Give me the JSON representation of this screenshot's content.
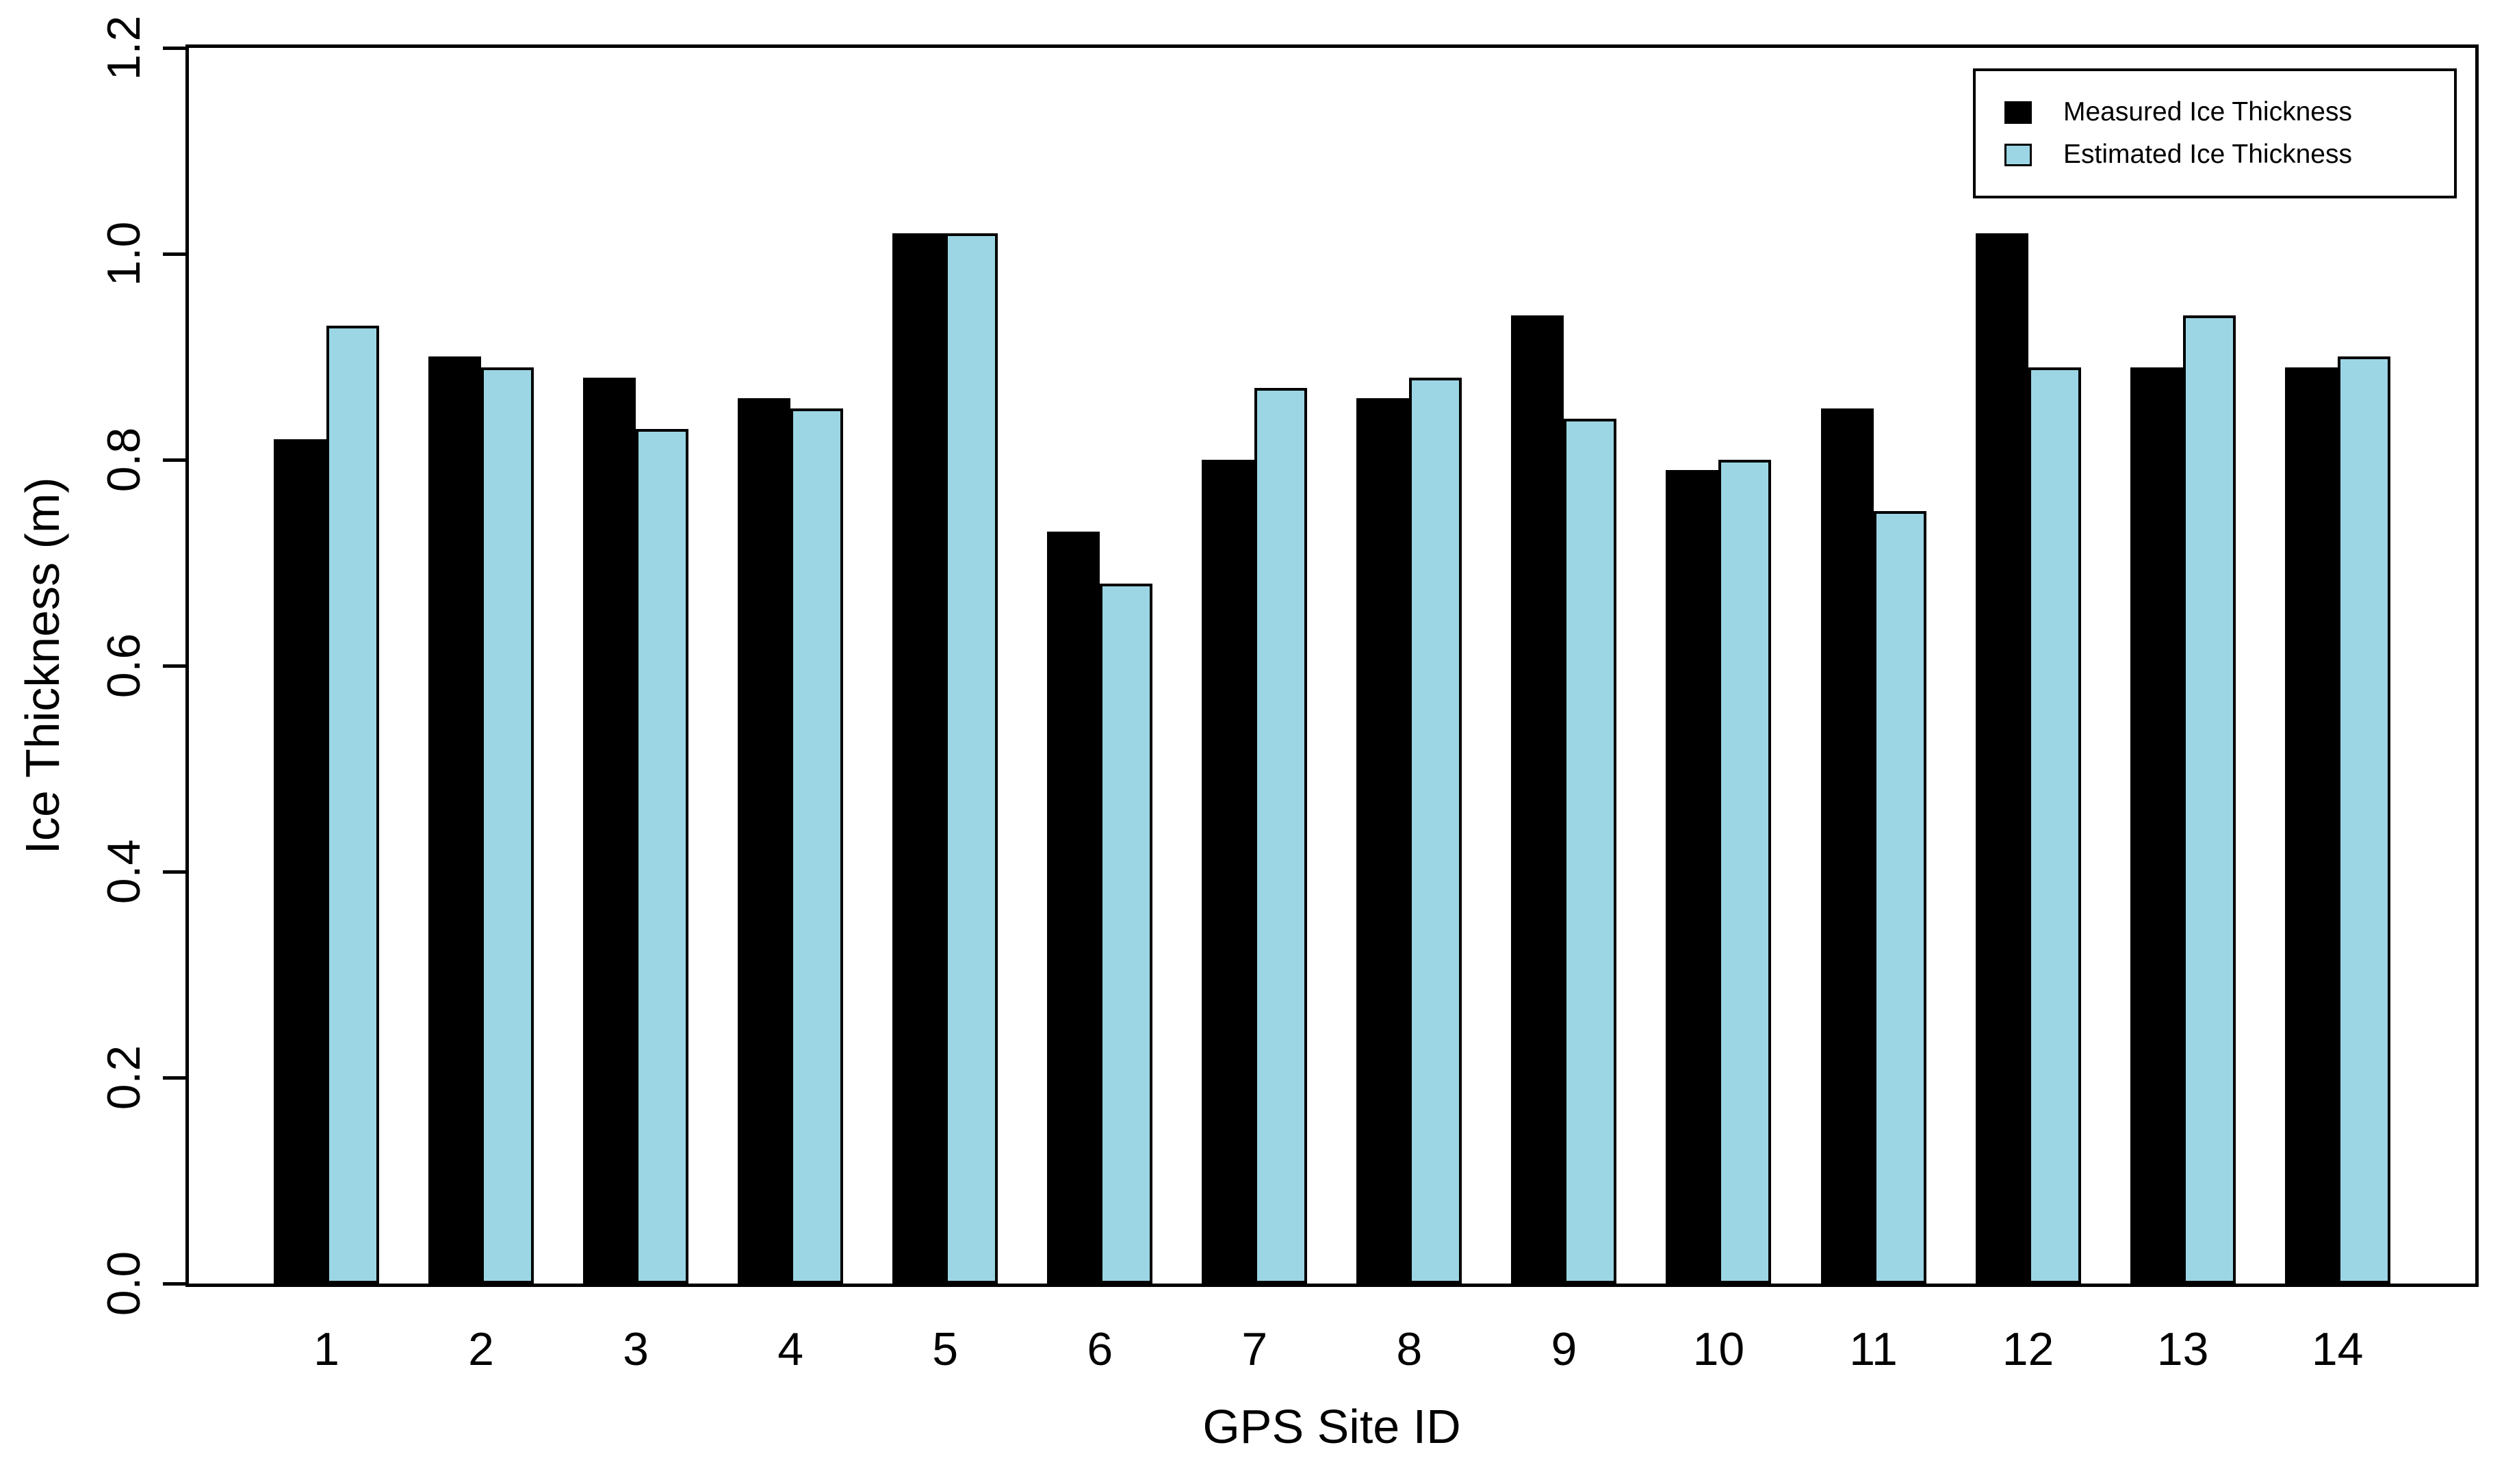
{
  "chart_data": {
    "type": "bar",
    "title": "",
    "xlabel": "GPS Site ID",
    "ylabel": "Ice Thickness (m)",
    "categories": [
      "1",
      "2",
      "3",
      "4",
      "5",
      "6",
      "7",
      "8",
      "9",
      "10",
      "11",
      "12",
      "13",
      "14"
    ],
    "series": [
      {
        "name": "Measured Ice Thickness",
        "color": "#000000",
        "values": [
          0.82,
          0.9,
          0.88,
          0.86,
          1.02,
          0.73,
          0.8,
          0.86,
          0.94,
          0.79,
          0.85,
          1.02,
          0.89,
          0.89
        ]
      },
      {
        "name": "Estimated Ice Thickness",
        "color": "#9CD6E4",
        "values": [
          0.93,
          0.89,
          0.83,
          0.85,
          1.02,
          0.68,
          0.87,
          0.88,
          0.84,
          0.8,
          0.75,
          0.89,
          0.94,
          0.9
        ]
      }
    ],
    "ylim": [
      0.0,
      1.2
    ],
    "yticks": [
      "0.0",
      "0.2",
      "0.4",
      "0.6",
      "0.8",
      "1.0",
      "1.2"
    ],
    "legend_position": "top-right",
    "grid": false,
    "bar_border_color": "#000000",
    "background_color": "#ffffff"
  }
}
